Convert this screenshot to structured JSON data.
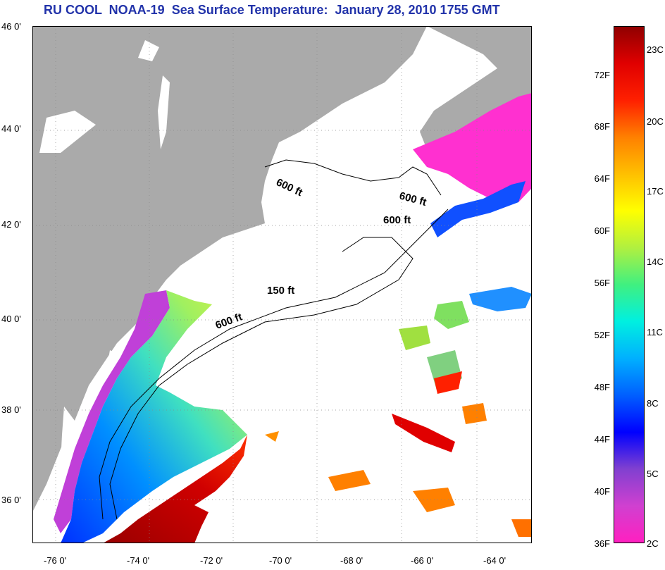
{
  "title": "RU COOL  NOAA-19  Sea Surface Temperature:  January 28, 2010 1755 GMT",
  "lat_labels": [
    "46 0'",
    "44 0'",
    "42 0'",
    "40 0'",
    "38 0'",
    "36 0'"
  ],
  "lon_labels": [
    "-76 0'",
    "-74 0'",
    "-72 0'",
    "-70 0'",
    "-68 0'",
    "-66 0'",
    "-64 0'"
  ],
  "contour_labels": [
    "600 ft",
    "600 ft",
    "600 ft",
    "150 ft",
    "600 ft"
  ],
  "colorbar": {
    "fahrenheit": [
      "72F",
      "68F",
      "64F",
      "60F",
      "56F",
      "52F",
      "48F",
      "44F",
      "40F",
      "36F"
    ],
    "celsius": [
      "23C",
      "20C",
      "17C",
      "14C",
      "11C",
      "8C",
      "5C",
      "2C"
    ],
    "colors": [
      "#ff20c0",
      "#d040d0",
      "#8040d0",
      "#0000ff",
      "#0060ff",
      "#00b0ff",
      "#00f0e0",
      "#40f080",
      "#b0f040",
      "#ffff00",
      "#ffc000",
      "#ff8000",
      "#ff2000",
      "#e00000",
      "#900000"
    ]
  },
  "colors": {
    "land": "#aaaaaa",
    "ocean": "#ffffff",
    "title": "#2233aa"
  }
}
